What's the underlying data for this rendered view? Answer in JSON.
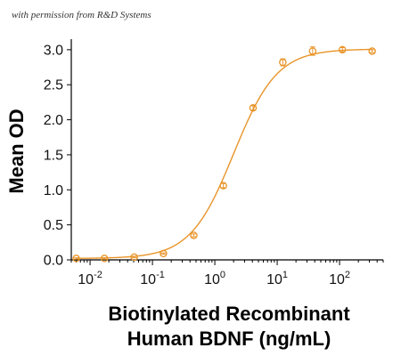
{
  "watermark": "with permission from R&D Systems",
  "colors": {
    "series": "#e8952a",
    "axis": "#000000"
  },
  "chart_data": {
    "type": "scatter",
    "xlabel_line1": "Biotinylated Recombinant",
    "xlabel_line2": "Human BDNF (ng/mL)",
    "ylabel": "Mean OD",
    "x_scale": "log",
    "xlim": [
      0.005,
      500
    ],
    "ylim": [
      0,
      3.1
    ],
    "grid": false,
    "x_ticks": [
      {
        "base": "10",
        "exp": "-2",
        "value": 0.01
      },
      {
        "base": "10",
        "exp": "-1",
        "value": 0.1
      },
      {
        "base": "10",
        "exp": "0",
        "value": 1
      },
      {
        "base": "10",
        "exp": "1",
        "value": 10
      },
      {
        "base": "10",
        "exp": "2",
        "value": 100
      }
    ],
    "y_ticks": [
      "0.0",
      "0.5",
      "1.0",
      "1.5",
      "2.0",
      "2.5",
      "3.0"
    ],
    "series": [
      {
        "x": [
          0.006,
          0.017,
          0.051,
          0.15,
          0.46,
          1.37,
          4.1,
          12.3,
          37,
          111,
          333
        ],
        "y": [
          0.02,
          0.02,
          0.04,
          0.09,
          0.35,
          1.06,
          2.17,
          2.82,
          2.98,
          3.0,
          2.98
        ],
        "err": [
          0.01,
          0.01,
          0.01,
          0.01,
          0.02,
          0.03,
          0.03,
          0.05,
          0.06,
          0.03,
          0.02
        ],
        "fit": {
          "model": "4PL",
          "bottom": 0.02,
          "top": 3.01,
          "ec50": 2.0,
          "hill": 1.25
        }
      }
    ]
  }
}
